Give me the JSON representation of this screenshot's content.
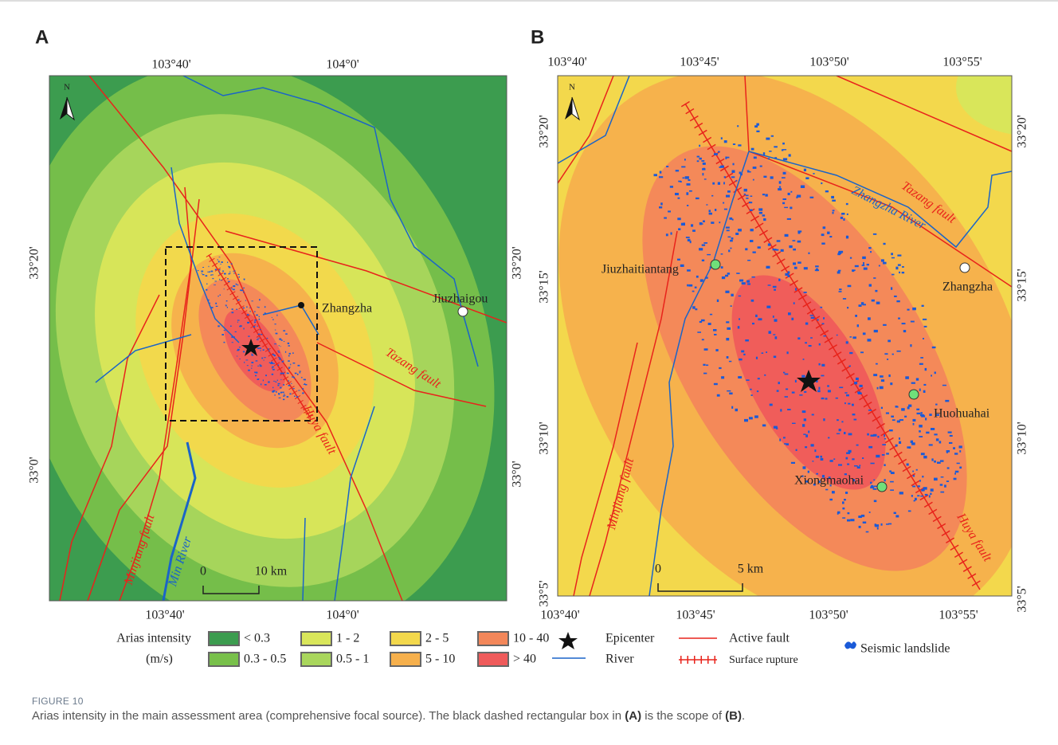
{
  "panel_a": {
    "label": "A",
    "top_ticks": [
      "103°40'",
      "104°0'"
    ],
    "bottom_ticks": [
      "103°40'",
      "104°0'"
    ],
    "left_ticks": [
      "33°20'",
      "33°0'"
    ],
    "right_ticks": [
      "33°20'",
      "33°0'"
    ],
    "north": "N",
    "places": [
      "Jiuzhaigou",
      "Zhangzha"
    ],
    "features": [
      "Tazang fault",
      "Huya fault",
      "Minjiang fault",
      "Min River"
    ],
    "scale": [
      "0",
      "10 km"
    ]
  },
  "panel_b": {
    "label": "B",
    "top_ticks": [
      "103°40'",
      "103°45'",
      "103°50'",
      "103°55'"
    ],
    "bottom_ticks": [
      "103°40'",
      "103°45'",
      "103°50'",
      "103°55'"
    ],
    "left_ticks": [
      "33°20'",
      "33°15'",
      "33°10'",
      "33°5'"
    ],
    "right_ticks": [
      "33°20'",
      "33°15'",
      "33°10'",
      "33°5'"
    ],
    "north": "N",
    "places": [
      "Jiuzhaitiantang",
      "Zhangzha",
      "Huohuahai",
      "Xiongmaohai"
    ],
    "features": [
      "Zhangzha River",
      "Tazang fault",
      "Huya fault",
      "Minjiang fault"
    ],
    "scale": [
      "0",
      "5 km"
    ]
  },
  "legend": {
    "title": "Arias intensity",
    "unit": "(m/s)",
    "classes": [
      {
        "label": "< 0.3",
        "color": "#3c9c4f"
      },
      {
        "label": "0.3 - 0.5",
        "color": "#78c04a"
      },
      {
        "label": "1 - 2",
        "color": "#d9e65a"
      },
      {
        "label": "0.5 - 1",
        "color": "#a9d65c"
      },
      {
        "label": "2 - 5",
        "color": "#f3d84c"
      },
      {
        "label": "5 - 10",
        "color": "#f6b04c"
      },
      {
        "label": "10 - 40",
        "color": "#f3875a"
      },
      {
        "label": "> 40",
        "color": "#ef5b5b"
      }
    ],
    "symbols": [
      "Epicenter",
      "River",
      "Active fault",
      "Surface rupture",
      "Seismic landslide"
    ]
  },
  "caption": {
    "figure": "FIGURE 10",
    "text": [
      "Arias intensity in the main assessment area (comprehensive focal source). The black dashed rectangular box in ",
      "(A)",
      " is the scope of ",
      "(B)",
      "."
    ]
  }
}
